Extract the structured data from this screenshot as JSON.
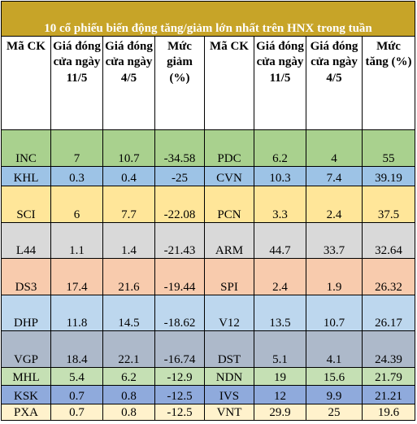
{
  "title": "10 cổ phiếu biến động tăng/giảm lớn nhất trên HNX trong tuần",
  "headers": {
    "code_left": "Mã CK",
    "close_left_a": "Giá đóng cửa ngày 11/5",
    "close_left_b": "Giá đóng cửa ngày 4/5",
    "change_left": "Mức giảm (%)",
    "code_right": "Mã CK",
    "close_right_a": "Giá đóng cửa ngày 11/5",
    "close_right_b": "Giá đóng cửa ngày 4/5",
    "change_right": "Mức tăng (%)"
  },
  "colors": {
    "title_bg": "#c7a428",
    "green": "#a9d18e",
    "blue": "#9dc3e6",
    "yellow": "#ffe699",
    "gray": "#d9d9d9",
    "salmon": "#f8cbad",
    "lightblue": "#bdd7ee",
    "slate": "#adb9ca",
    "lightgreen": "#c5e0b4",
    "mediumblue": "#8faadc",
    "cream": "#fff2cc"
  },
  "rows": [
    {
      "c1": "INC",
      "c2": "7",
      "c3": "10.7",
      "c4": "-34.58",
      "c5": "PDC",
      "c6": "6.2",
      "c7": "4",
      "c8": "55",
      "bg": "green"
    },
    {
      "c1": "KHL",
      "c2": "0.3",
      "c3": "0.4",
      "c4": "-25",
      "c5": "CVN",
      "c6": "10.3",
      "c7": "7.4",
      "c8": "39.19",
      "bg": "blue"
    },
    {
      "c1": "SCI",
      "c2": "6",
      "c3": "7.7",
      "c4": "-22.08",
      "c5": "PCN",
      "c6": "3.3",
      "c7": "2.4",
      "c8": "37.5",
      "bg": "yellow"
    },
    {
      "c1": "L44",
      "c2": "1.1",
      "c3": "1.4",
      "c4": "-21.43",
      "c5": "ARM",
      "c6": "44.7",
      "c7": "33.7",
      "c8": "32.64",
      "bg": "gray"
    },
    {
      "c1": "DS3",
      "c2": "17.4",
      "c3": "21.6",
      "c4": "-19.44",
      "c5": "SPI",
      "c6": "2.4",
      "c7": "1.9",
      "c8": "26.32",
      "bg": "salmon"
    },
    {
      "c1": "DHP",
      "c2": "11.8",
      "c3": "14.5",
      "c4": "-18.62",
      "c5": "V12",
      "c6": "13.5",
      "c7": "10.7",
      "c8": "26.17",
      "bg": "lightblue"
    },
    {
      "c1": "VGP",
      "c2": "18.4",
      "c3": "22.1",
      "c4": "-16.74",
      "c5": "DST",
      "c6": "5.1",
      "c7": "4.1",
      "c8": "24.39",
      "bg": "slate"
    },
    {
      "c1": "MHL",
      "c2": "5.4",
      "c3": "6.2",
      "c4": "-12.9",
      "c5": "NDN",
      "c6": "19",
      "c7": "15.6",
      "c8": "21.79",
      "bg": "lightgreen"
    },
    {
      "c1": "KSK",
      "c2": "0.7",
      "c3": "0.8",
      "c4": "-12.5",
      "c5": "IVS",
      "c6": "12",
      "c7": "9.9",
      "c8": "21.21",
      "bg": "mediumblue"
    },
    {
      "c1": "PXA",
      "c2": "0.7",
      "c3": "0.8",
      "c4": "-12.5",
      "c5": "VNT",
      "c6": "29.9",
      "c7": "25",
      "c8": "19.6",
      "bg": "cream"
    }
  ]
}
